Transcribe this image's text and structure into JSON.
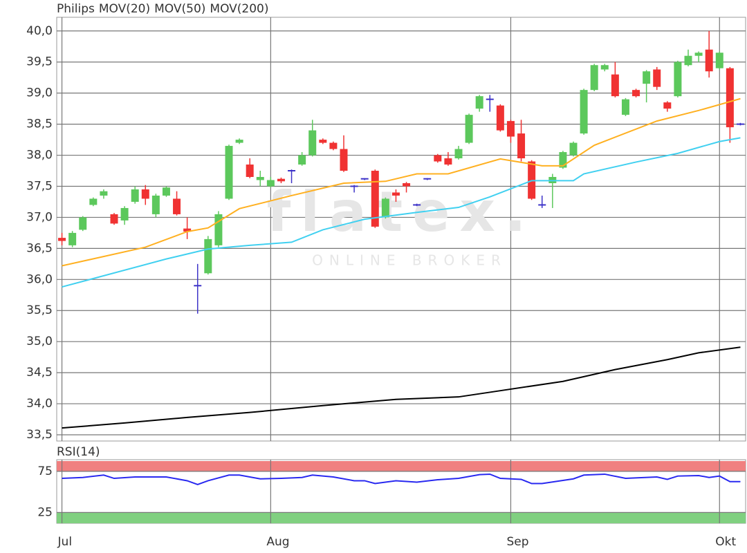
{
  "chart_data": [
    {
      "type": "candlestick",
      "candles": {
        "name": "Philips",
        "name_color": "#f05a28",
        "up_color": "#5cc85c",
        "down_color": "#f03232",
        "doji_color": "#3c32c8",
        "open": [
          36.67,
          36.55,
          36.8,
          37.2,
          37.35,
          37.05,
          36.95,
          37.25,
          37.45,
          37.05,
          37.35,
          37.3,
          36.82,
          35.9,
          36.1,
          36.55,
          37.3,
          38.2,
          37.85,
          37.6,
          37.5,
          37.62,
          37.75,
          37.85,
          38.0,
          38.25,
          38.2,
          38.1,
          37.5,
          37.62,
          37.75,
          37.0,
          37.4,
          37.55,
          37.2,
          37.62,
          38.0,
          37.95,
          37.95,
          38.2,
          38.75,
          38.9,
          38.8,
          38.55,
          38.35,
          37.9,
          37.2,
          37.55,
          37.8,
          38.0,
          38.35,
          39.05,
          39.38,
          39.3,
          38.65,
          39.05,
          39.15,
          39.38,
          38.85,
          38.95,
          39.45,
          39.6,
          39.7,
          39.4,
          39.4,
          38.5
        ],
        "high": [
          36.75,
          36.78,
          37.02,
          37.32,
          37.45,
          37.07,
          37.18,
          37.5,
          37.52,
          37.38,
          37.5,
          37.42,
          37.0,
          36.25,
          36.7,
          37.1,
          38.17,
          38.27,
          37.95,
          37.75,
          37.65,
          37.64,
          37.77,
          38.05,
          38.57,
          38.27,
          38.22,
          38.32,
          37.52,
          37.63,
          37.77,
          37.32,
          37.45,
          37.57,
          37.22,
          37.63,
          38.02,
          38.05,
          38.15,
          38.67,
          38.97,
          38.97,
          38.82,
          38.57,
          38.57,
          37.92,
          37.35,
          37.7,
          38.07,
          38.22,
          39.07,
          39.47,
          39.47,
          39.5,
          38.92,
          39.07,
          39.37,
          39.42,
          38.87,
          39.52,
          39.7,
          39.67,
          40.0,
          39.67,
          39.42,
          38.52
        ],
        "low": [
          36.55,
          36.52,
          36.78,
          37.18,
          37.3,
          36.88,
          36.88,
          37.22,
          37.2,
          37.0,
          37.33,
          37.03,
          36.65,
          35.45,
          36.08,
          36.52,
          37.28,
          38.18,
          37.63,
          37.5,
          37.48,
          37.55,
          37.55,
          37.83,
          37.98,
          38.18,
          38.08,
          37.73,
          37.4,
          37.6,
          36.83,
          36.98,
          37.25,
          37.4,
          37.18,
          37.6,
          37.88,
          37.83,
          37.93,
          38.18,
          38.7,
          38.7,
          38.38,
          38.2,
          37.9,
          37.28,
          37.15,
          37.15,
          37.78,
          37.98,
          38.33,
          39.03,
          39.35,
          38.93,
          38.63,
          38.93,
          38.85,
          39.05,
          38.7,
          38.93,
          39.43,
          39.5,
          39.25,
          39.38,
          38.2,
          38.48
        ],
        "close": [
          36.62,
          36.75,
          37.0,
          37.3,
          37.42,
          36.9,
          37.15,
          37.45,
          37.3,
          37.35,
          37.48,
          37.05,
          36.77,
          35.9,
          36.65,
          37.05,
          38.15,
          38.25,
          37.65,
          37.65,
          37.6,
          37.58,
          37.75,
          38.0,
          38.4,
          38.2,
          38.1,
          37.75,
          37.5,
          37.62,
          36.85,
          37.3,
          37.35,
          37.5,
          37.2,
          37.62,
          37.9,
          37.85,
          38.1,
          38.65,
          38.95,
          38.9,
          38.4,
          38.3,
          37.95,
          37.3,
          37.2,
          37.65,
          38.05,
          38.2,
          39.05,
          39.45,
          39.45,
          38.95,
          38.9,
          38.95,
          39.35,
          39.1,
          38.75,
          39.5,
          39.6,
          39.65,
          39.35,
          39.65,
          38.45,
          38.5
        ]
      },
      "series": [
        {
          "name": "MOV(20)",
          "color": "#ffb020",
          "x": [
            0,
            8,
            12,
            14,
            17,
            22,
            27,
            31,
            34,
            37,
            42,
            46,
            48,
            51,
            57,
            61,
            65
          ],
          "values": [
            36.22,
            36.52,
            36.77,
            36.83,
            37.14,
            37.35,
            37.55,
            37.58,
            37.7,
            37.7,
            37.94,
            37.83,
            37.83,
            38.16,
            38.55,
            38.72,
            38.91
          ]
        },
        {
          "name": "MOV(50)",
          "color": "#40d0f0",
          "x": [
            0,
            10,
            14,
            18,
            22,
            25,
            29,
            34,
            38,
            41,
            45,
            49,
            50,
            55,
            59,
            63,
            65
          ],
          "values": [
            35.88,
            36.33,
            36.49,
            36.55,
            36.6,
            36.8,
            36.97,
            37.08,
            37.16,
            37.33,
            37.59,
            37.59,
            37.7,
            37.89,
            38.03,
            38.22,
            38.28
          ]
        },
        {
          "name": "MOV(200)",
          "color": "#000000",
          "x": [
            0,
            6,
            12,
            18,
            25,
            32,
            38,
            42,
            48,
            53,
            58,
            61,
            65
          ],
          "values": [
            33.61,
            33.69,
            33.78,
            33.86,
            33.97,
            34.07,
            34.11,
            34.21,
            34.36,
            34.55,
            34.71,
            34.82,
            34.91
          ]
        }
      ],
      "ylim": [
        33.4,
        40.22
      ],
      "yticks": [
        {
          "value": 33.5,
          "label": "33,5"
        },
        {
          "value": 34,
          "label": "34,0"
        },
        {
          "value": 34.5,
          "label": "34,5"
        },
        {
          "value": 35,
          "label": "35,0"
        },
        {
          "value": 35.5,
          "label": "35,5"
        },
        {
          "value": 36,
          "label": "36,0"
        },
        {
          "value": 36.5,
          "label": "36,5"
        },
        {
          "value": 37,
          "label": "37,0"
        },
        {
          "value": 37.5,
          "label": "37,5"
        },
        {
          "value": 38,
          "label": "38,0"
        },
        {
          "value": 38.5,
          "label": "38,5"
        },
        {
          "value": 39,
          "label": "39,0"
        },
        {
          "value": 39.5,
          "label": "39,5"
        },
        {
          "value": 40,
          "label": "40,0"
        }
      ],
      "xlim": [
        -0.5,
        65.5
      ],
      "xticks": [
        {
          "value": 0,
          "label": "Jul"
        },
        {
          "value": 20,
          "label": "Aug"
        },
        {
          "value": 43,
          "label": "Sep"
        },
        {
          "value": 63,
          "label": "Okt"
        }
      ],
      "watermark": {
        "logo": "flatex.",
        "tagline": "ONLINE BROKER"
      },
      "grid": true
    },
    {
      "type": "line",
      "title": "RSI(14)",
      "series": [
        {
          "name": "RSI(14)",
          "color": "#2828f0",
          "x": [
            0,
            2,
            4,
            5,
            7,
            10,
            12,
            13,
            14,
            16,
            17,
            19,
            21,
            23,
            24,
            26,
            28,
            29,
            30,
            32,
            34,
            36,
            38,
            40,
            41,
            42,
            44,
            45,
            46,
            49,
            50,
            52,
            54,
            57,
            58,
            59,
            61,
            62,
            63,
            64,
            65
          ],
          "values": [
            66.5,
            67.6,
            70.5,
            66.5,
            68.2,
            68.2,
            63.6,
            59,
            63.6,
            70.5,
            70.5,
            65.9,
            66.5,
            67.6,
            70.5,
            68.2,
            63.6,
            63.6,
            60.2,
            63.6,
            61.9,
            64.8,
            66.5,
            71,
            71.6,
            66.5,
            65.3,
            60.2,
            60.2,
            65.9,
            70.5,
            71.6,
            66.5,
            68.2,
            65.3,
            69.3,
            69.9,
            67.6,
            69.3,
            62.5,
            62.5
          ]
        }
      ],
      "bands": {
        "upper_color": "#f08080",
        "lower_color": "#80d080"
      },
      "ylim": [
        11.9,
        89.2
      ],
      "yticks": [
        25,
        75
      ],
      "xlim": [
        -0.5,
        65.5
      ],
      "grid": true
    }
  ]
}
